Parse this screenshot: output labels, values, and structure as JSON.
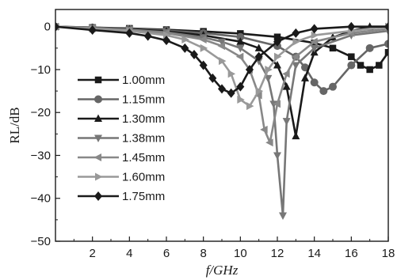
{
  "chart_data": {
    "type": "line",
    "xlabel": "f/GHz",
    "ylabel": "RL/dB",
    "xlim": [
      0,
      18
    ],
    "ylim": [
      -50,
      4
    ],
    "xticks": [
      2,
      4,
      6,
      8,
      10,
      12,
      14,
      16,
      18
    ],
    "yticks": [
      0,
      -10,
      -20,
      -30,
      -40,
      -50
    ],
    "xtick_labels": [
      "2",
      "4",
      "6",
      "8",
      "10",
      "12",
      "14",
      "16",
      "18"
    ],
    "ytick_labels": [
      "0",
      "−10",
      "−20",
      "−30",
      "−40",
      "−50"
    ],
    "grid": false,
    "legend_position": "left",
    "series": [
      {
        "name": "1.00mm",
        "color": "#1a1a1a",
        "marker": "square",
        "x": [
          0,
          2,
          4,
          6,
          8,
          10,
          12,
          14,
          15,
          16,
          16.5,
          17,
          17.5,
          18
        ],
        "y": [
          0,
          -0.2,
          -0.4,
          -0.7,
          -1.1,
          -1.6,
          -2.4,
          -3.8,
          -5,
          -7,
          -9,
          -10,
          -9,
          -6
        ]
      },
      {
        "name": "1.15mm",
        "color": "#666666",
        "marker": "circle",
        "x": [
          0,
          2,
          4,
          6,
          8,
          10,
          12,
          13,
          13.5,
          14,
          14.5,
          15,
          16,
          17,
          18
        ],
        "y": [
          0,
          -0.2,
          -0.5,
          -0.9,
          -1.5,
          -2.4,
          -4.5,
          -7,
          -9.5,
          -13,
          -15,
          -14,
          -9,
          -5,
          -4
        ]
      },
      {
        "name": "1.30mm",
        "color": "#1a1a1a",
        "marker": "triangle-up",
        "x": [
          0,
          2,
          4,
          6,
          8,
          10,
          11,
          12,
          12.5,
          13,
          13.5,
          14,
          15,
          16,
          17,
          18
        ],
        "y": [
          0,
          -0.3,
          -0.6,
          -1.1,
          -2,
          -3.5,
          -5,
          -9,
          -14,
          -25.5,
          -12,
          -6,
          -2.5,
          -1,
          0,
          0
        ]
      },
      {
        "name": "1.38mm",
        "color": "#777777",
        "marker": "triangle-down",
        "x": [
          0,
          2,
          4,
          6,
          8,
          9,
          10,
          11,
          11.5,
          11.8,
          12,
          12.3,
          12.5,
          13,
          14,
          16,
          18
        ],
        "y": [
          0,
          -0.3,
          -0.7,
          -1.3,
          -2.5,
          -3.5,
          -5,
          -8,
          -12,
          -18,
          -30,
          -44,
          -22,
          -9,
          -5,
          -2,
          -1
        ]
      },
      {
        "name": "1.45mm",
        "color": "#888888",
        "marker": "triangle-left",
        "x": [
          0,
          2,
          4,
          6,
          8,
          9,
          10,
          10.5,
          11,
          11.3,
          11.6,
          12,
          12.5,
          13,
          14,
          16,
          18
        ],
        "y": [
          0,
          -0.4,
          -0.8,
          -1.5,
          -3,
          -4.5,
          -7,
          -10,
          -16,
          -24,
          -27,
          -18,
          -11,
          -7,
          -3.5,
          -1.5,
          -0.5
        ]
      },
      {
        "name": "1.60mm",
        "color": "#999999",
        "marker": "triangle-right",
        "x": [
          0,
          2,
          4,
          6,
          7,
          8,
          9,
          9.5,
          10,
          10.5,
          11,
          11.5,
          12,
          13,
          14,
          16,
          18
        ],
        "y": [
          0,
          -0.5,
          -1,
          -2,
          -3,
          -5,
          -8,
          -11,
          -17,
          -18.5,
          -15,
          -10,
          -7,
          -3.5,
          -2,
          -1,
          0
        ]
      },
      {
        "name": "1.75mm",
        "color": "#1a1a1a",
        "marker": "diamond",
        "x": [
          0,
          2,
          4,
          5,
          6,
          7,
          7.5,
          8,
          8.5,
          9,
          9.5,
          10,
          10.5,
          11,
          12,
          13,
          14,
          16,
          18
        ],
        "y": [
          0,
          -0.8,
          -1.5,
          -2.2,
          -3.2,
          -5,
          -6.5,
          -9,
          -12,
          -14.5,
          -15.5,
          -14,
          -10,
          -7,
          -3.5,
          -1.5,
          -0.5,
          0,
          0
        ]
      }
    ]
  }
}
